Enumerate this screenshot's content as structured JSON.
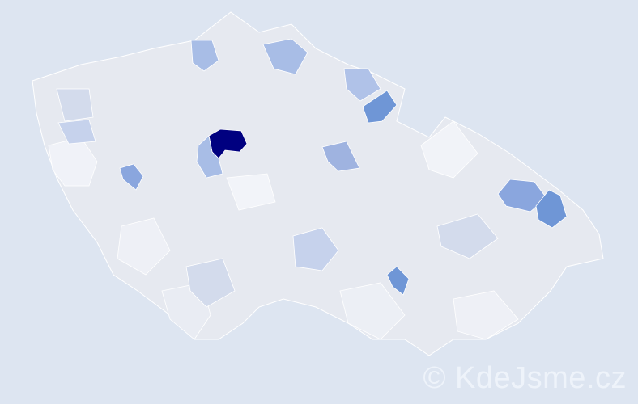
{
  "watermark": "© KdeJsme.cz",
  "colors": {
    "background": "#dde5f1",
    "base_region": "#e6e9f0",
    "scale": [
      "#eef0f6",
      "#d3dbec",
      "#a8bde6",
      "#8aa6de",
      "#6f96d6",
      "#000080"
    ]
  },
  "regions": [
    {
      "level": 5,
      "color": "#000080"
    },
    {
      "level": 2,
      "color": "#a8bde6"
    },
    {
      "level": 3,
      "color": "#8aa6de"
    },
    {
      "level": 4,
      "color": "#6f96d6"
    },
    {
      "level": 3,
      "color": "#8aa6de"
    },
    {
      "level": 4,
      "color": "#6f96d6"
    },
    {
      "level": 4,
      "color": "#6f96d6"
    },
    {
      "level": 2,
      "color": "#a8bde6"
    },
    {
      "level": 2,
      "color": "#a8bde6"
    },
    {
      "level": 3,
      "color": "#9fb3e0"
    },
    {
      "level": 1,
      "color": "#c6d2ec"
    },
    {
      "level": 1,
      "color": "#c6d2ec"
    },
    {
      "level": 2,
      "color": "#b0c2e8"
    }
  ]
}
